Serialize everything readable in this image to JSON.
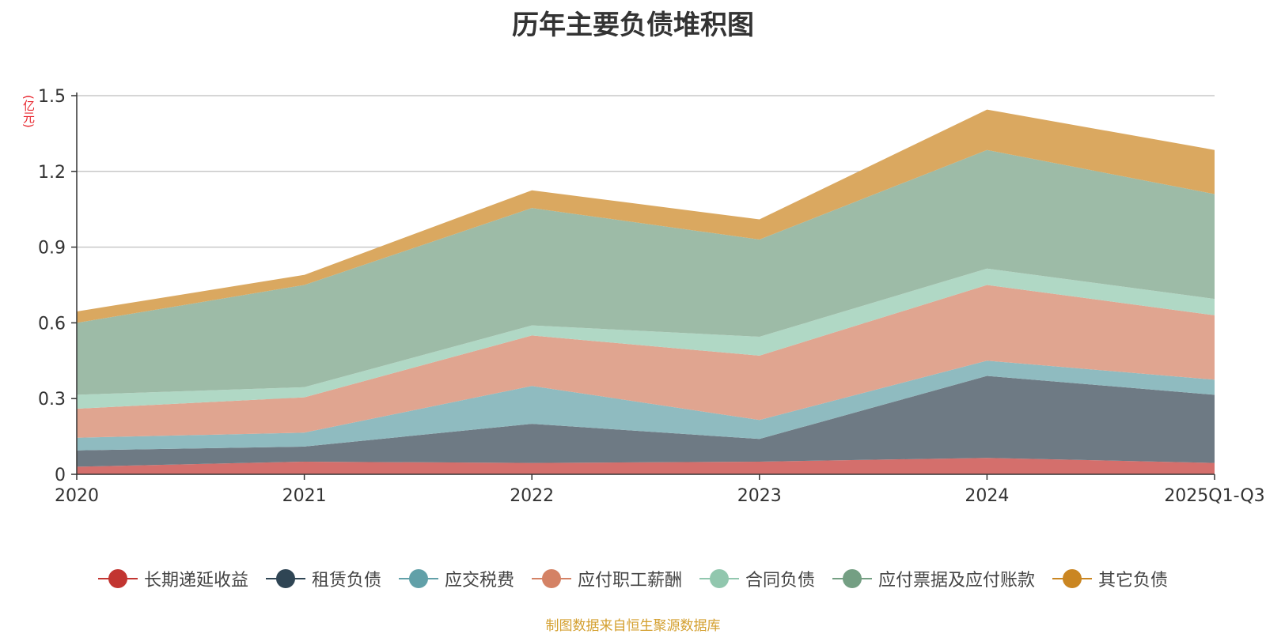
{
  "chart_data": {
    "type": "area",
    "stacked": true,
    "title": "历年主要负债堆积图",
    "unit": "(亿元)",
    "categories": [
      "2020",
      "2021",
      "2022",
      "2023",
      "2024",
      "2025Q1-Q3"
    ],
    "ylim": [
      0,
      1.5
    ],
    "yticks": [
      "0",
      "0.3",
      "0.6",
      "0.9",
      "1.2",
      "1.5"
    ],
    "grid": true,
    "legend_position": "bottom",
    "series": [
      {
        "name": "长期递延收益",
        "values": [
          0.03,
          0.05,
          0.045,
          0.05,
          0.065,
          0.045
        ],
        "color": "#c23531",
        "fill": "#d46f6c"
      },
      {
        "name": "租赁负债",
        "values": [
          0.065,
          0.06,
          0.155,
          0.09,
          0.325,
          0.27
        ],
        "color": "#2f4554",
        "fill": "#6e7a84"
      },
      {
        "name": "应交税费",
        "values": [
          0.05,
          0.055,
          0.15,
          0.075,
          0.06,
          0.06
        ],
        "color": "#61a0a8",
        "fill": "#8fbbc0"
      },
      {
        "name": "应付职工薪酬",
        "values": [
          0.115,
          0.14,
          0.2,
          0.255,
          0.3,
          0.255
        ],
        "color": "#d48265",
        "fill": "#e0a590"
      },
      {
        "name": "合同负债",
        "values": [
          0.055,
          0.04,
          0.04,
          0.075,
          0.065,
          0.065
        ],
        "color": "#91c7ae",
        "fill": "#b0d8c5"
      },
      {
        "name": "应付票据及应付账款",
        "values": [
          0.285,
          0.405,
          0.465,
          0.385,
          0.47,
          0.415
        ],
        "color": "#749f83",
        "fill": "#9dbba7"
      },
      {
        "name": "其它负债",
        "values": [
          0.045,
          0.04,
          0.07,
          0.08,
          0.16,
          0.175
        ],
        "color": "#ca8622",
        "fill": "#daa860"
      }
    ]
  },
  "source_note": "制图数据来自恒生聚源数据库"
}
